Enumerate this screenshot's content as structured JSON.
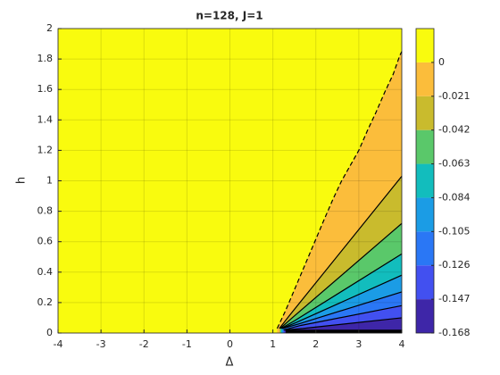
{
  "chart_data": {
    "type": "contourf",
    "title": "n=128, J=1",
    "x_label": "Δ",
    "y_label": "h",
    "xlim": [
      -4,
      4
    ],
    "xticks": [
      -4,
      -3,
      -2,
      -1,
      0,
      1,
      2,
      3,
      4
    ],
    "ylim": [
      0,
      2
    ],
    "yticks": [
      0,
      0.2,
      0.4,
      0.6,
      0.8,
      1,
      1.2,
      1.4,
      1.6,
      1.8,
      2
    ],
    "grid": true,
    "clim": [
      -0.168,
      0.021
    ],
    "cticks": [
      -0.168,
      -0.147,
      -0.126,
      -0.105,
      -0.084,
      -0.063,
      -0.042,
      -0.021,
      0
    ],
    "band_colors": [
      "#3e26a8",
      "#4250f0",
      "#2a77f5",
      "#1b9ce5",
      "#12bdbd",
      "#5ac86a",
      "#c9bb2d",
      "#fbbd3b",
      "#f9fb0e"
    ],
    "contours": [
      {
        "level": 0,
        "style": "dashed",
        "x": [
          1.1,
          1.3,
          1.45,
          1.6,
          1.75,
          1.9,
          2.05,
          2.2,
          2.4,
          2.6,
          2.8,
          3.0,
          3.2,
          3.4,
          3.6,
          3.8,
          3.95,
          4.0
        ],
        "y": [
          0.03,
          0.15,
          0.25,
          0.35,
          0.45,
          0.55,
          0.65,
          0.75,
          0.88,
          1.0,
          1.1,
          1.2,
          1.33,
          1.45,
          1.58,
          1.7,
          1.82,
          1.85
        ]
      },
      {
        "level": -0.021,
        "style": "solid",
        "x": [
          1.15,
          1.4,
          4
        ],
        "y": [
          0.03,
          0.12,
          1.03
        ]
      },
      {
        "level": -0.042,
        "style": "solid",
        "x": [
          1.17,
          1.45,
          4
        ],
        "y": [
          0.03,
          0.1,
          0.72
        ]
      },
      {
        "level": -0.063,
        "style": "solid",
        "x": [
          1.19,
          1.5,
          4
        ],
        "y": [
          0.03,
          0.08,
          0.52
        ]
      },
      {
        "level": -0.084,
        "style": "solid",
        "x": [
          1.21,
          1.55,
          4
        ],
        "y": [
          0.03,
          0.07,
          0.38
        ]
      },
      {
        "level": -0.105,
        "style": "solid",
        "x": [
          1.23,
          1.6,
          4
        ],
        "y": [
          0.03,
          0.06,
          0.27
        ]
      },
      {
        "level": -0.126,
        "style": "solid",
        "x": [
          1.25,
          1.65,
          4
        ],
        "y": [
          0.02,
          0.05,
          0.18
        ]
      },
      {
        "level": -0.147,
        "style": "solid",
        "x": [
          1.27,
          1.7,
          4
        ],
        "y": [
          0.02,
          0.03,
          0.1
        ]
      },
      {
        "level": -0.168,
        "style": "solid",
        "x": [
          1.3,
          4
        ],
        "y": [
          0.01,
          0.01
        ]
      }
    ]
  }
}
